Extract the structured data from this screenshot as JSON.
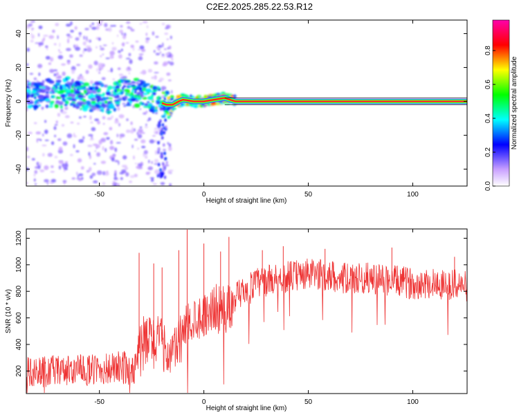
{
  "title": "C2E2.2025.285.22.53.R12",
  "chart_data": [
    {
      "type": "heatmap",
      "xlabel": "Height of straight line (km)",
      "ylabel": "Frequency (Hz)",
      "xlim": [
        -85,
        126
      ],
      "ylim": [
        -50,
        48
      ],
      "xticks": [
        -50,
        0,
        50,
        100
      ],
      "yticks": [
        -40,
        -20,
        0,
        20,
        40
      ],
      "grid": false,
      "colorbar": {
        "label": "Normalized spectral amplitude",
        "range": [
          0.0,
          0.98
        ],
        "ticks": [
          0.0,
          0.2,
          0.4,
          0.6,
          0.8
        ],
        "tick_labels": [
          "0.0",
          "0.2",
          "0.4",
          "0.6",
          "0.8"
        ]
      },
      "ridge": {
        "x": [
          -82,
          -75,
          -70,
          -65,
          -60,
          -55,
          -50,
          -45,
          -40,
          -35,
          -30,
          -25,
          -20,
          -18,
          -15,
          -12,
          -10,
          -5,
          0,
          5,
          10,
          15,
          20,
          30,
          50,
          75,
          100,
          126
        ],
        "y": [
          3,
          5,
          4,
          6,
          4,
          2,
          3,
          1,
          5,
          6,
          4,
          2,
          -1,
          -2,
          -2,
          0,
          1,
          0,
          0,
          1,
          2,
          0,
          0,
          0,
          0,
          0,
          0,
          0
        ],
        "amplitude": [
          0.4,
          0.45,
          0.5,
          0.45,
          0.5,
          0.45,
          0.5,
          0.5,
          0.5,
          0.55,
          0.5,
          0.55,
          0.6,
          0.65,
          0.7,
          0.7,
          0.7,
          0.75,
          0.8,
          0.8,
          0.8,
          0.9,
          0.95,
          0.95,
          0.95,
          0.95,
          0.95,
          0.95
        ]
      }
    },
    {
      "type": "line",
      "xlabel": "Height of straight line (km)",
      "ylabel": "SNR (10 * v/v)",
      "xlim": [
        -85,
        126
      ],
      "ylim": [
        30,
        1270
      ],
      "xticks": [
        -50,
        0,
        50,
        100
      ],
      "yticks": [
        200,
        400,
        600,
        800,
        1000,
        1200
      ],
      "grid": false,
      "color": "#ee3333",
      "trend": {
        "x": [
          -85,
          -70,
          -50,
          -40,
          -33,
          -30,
          -25,
          -20,
          -17,
          -14,
          -10,
          -5,
          0,
          5,
          10,
          15,
          20,
          25,
          30,
          40,
          50,
          60,
          70,
          80,
          90,
          100,
          110,
          120,
          126
        ],
        "y": [
          190,
          200,
          210,
          220,
          240,
          380,
          430,
          400,
          320,
          350,
          480,
          600,
          620,
          680,
          640,
          720,
          800,
          860,
          880,
          910,
          930,
          920,
          890,
          900,
          880,
          860,
          860,
          850,
          840
        ],
        "spread": [
          120,
          120,
          120,
          130,
          150,
          230,
          220,
          200,
          150,
          180,
          200,
          180,
          160,
          180,
          200,
          150,
          130,
          120,
          120,
          120,
          120,
          120,
          120,
          120,
          120,
          120,
          120,
          120,
          120
        ]
      },
      "spikes": [
        {
          "x": -31,
          "y": 1090
        },
        {
          "x": -24,
          "y": 1010
        },
        {
          "x": -20,
          "y": 980
        },
        {
          "x": -12,
          "y": 1110
        },
        {
          "x": -8,
          "y": 1265
        },
        {
          "x": 0,
          "y": 1160
        },
        {
          "x": 8,
          "y": 1100
        },
        {
          "x": 12,
          "y": 1210
        },
        {
          "x": 28,
          "y": 1110
        },
        {
          "x": 38,
          "y": 1140
        },
        {
          "x": 58,
          "y": 1120
        },
        {
          "x": 90,
          "y": 1130
        },
        {
          "x": 120,
          "y": 1060
        }
      ]
    }
  ]
}
